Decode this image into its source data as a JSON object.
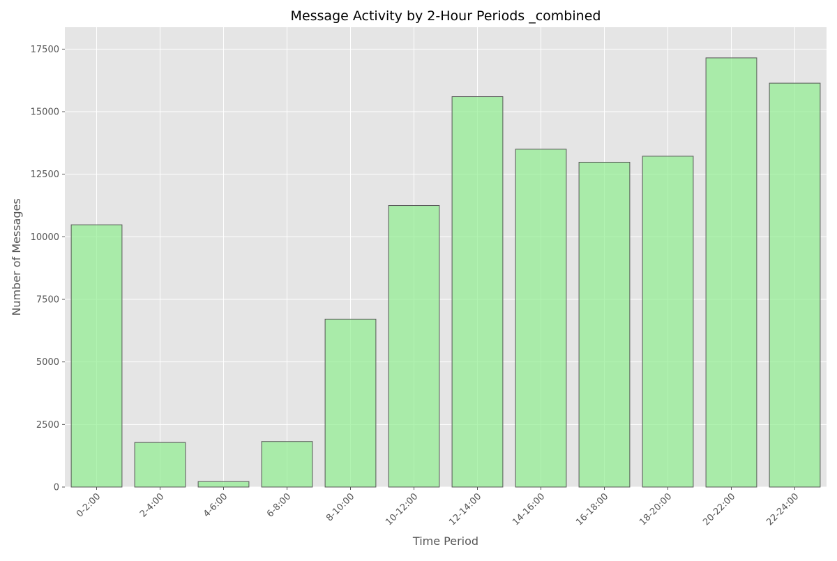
{
  "chart_data": {
    "type": "bar",
    "title": "Message Activity by 2-Hour Periods _combined",
    "xlabel": "Time Period",
    "ylabel": "Number of Messages",
    "categories": [
      "0-2:00",
      "2-4:00",
      "4-6:00",
      "6-8:00",
      "8-10:00",
      "10-12:00",
      "12-14:00",
      "14-16:00",
      "16-18:00",
      "18-20:00",
      "20-22:00",
      "22-24:00"
    ],
    "values": [
      10480,
      1780,
      220,
      1820,
      6710,
      11250,
      15600,
      13500,
      12980,
      13220,
      17150,
      16140
    ],
    "ylim": [
      0,
      17500
    ],
    "yticks": [
      0,
      2500,
      5000,
      7500,
      10000,
      12500,
      15000,
      17500
    ],
    "grid": true,
    "colors": {
      "bar_fill": "#90ee90",
      "bar_edge": "#555555",
      "plot_background": "#e5e5e5",
      "grid": "#ffffff"
    }
  }
}
